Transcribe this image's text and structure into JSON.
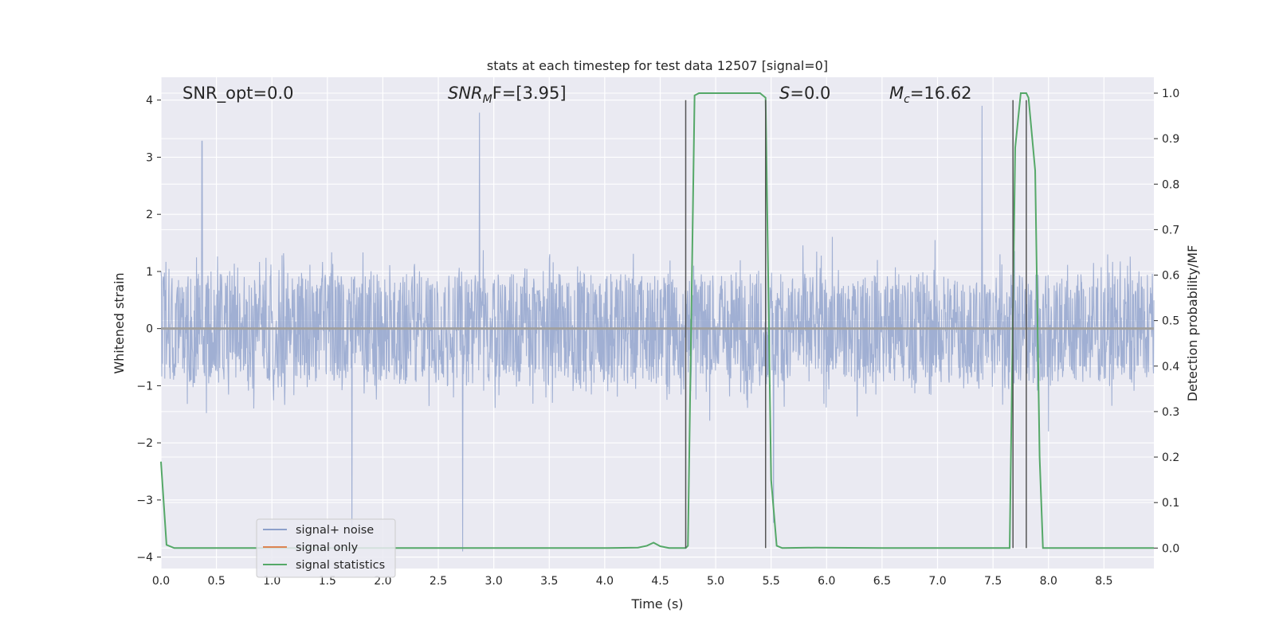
{
  "chart_data": {
    "type": "line",
    "title": "stats at each timestep for test data 12507 [signal=0]",
    "xlabel": "Time (s)",
    "ylabel": "Whitened strain",
    "y2label": "Detection probability/MF",
    "xlim": [
      0.0,
      8.95
    ],
    "ylim": [
      -4.2,
      4.4
    ],
    "y2lim": [
      -0.045,
      1.035
    ],
    "x_ticks": [
      0.0,
      0.5,
      1.0,
      1.5,
      2.0,
      2.5,
      3.0,
      3.5,
      4.0,
      4.5,
      5.0,
      5.5,
      6.0,
      6.5,
      7.0,
      7.5,
      8.0,
      8.5
    ],
    "x_tick_labels": [
      "0.0",
      "0.5",
      "1.0",
      "1.5",
      "2.0",
      "2.5",
      "3.0",
      "3.5",
      "4.0",
      "4.5",
      "5.0",
      "5.5",
      "6.0",
      "6.5",
      "7.0",
      "7.5",
      "8.0",
      "8.5"
    ],
    "y_ticks": [
      4,
      3,
      2,
      1,
      0,
      -1,
      -2,
      -3,
      -4
    ],
    "y_tick_labels": [
      "4",
      "3",
      "2",
      "1",
      "0",
      "−1",
      "−2",
      "−3",
      "−4"
    ],
    "y2_ticks": [
      1.0,
      0.9,
      0.8,
      0.7,
      0.6,
      0.5,
      0.4,
      0.3,
      0.2,
      0.1,
      0.0
    ],
    "y2_tick_labels": [
      "1.0",
      "0.9",
      "0.8",
      "0.7",
      "0.6",
      "0.5",
      "0.4",
      "0.3",
      "0.2",
      "0.1",
      "0.0"
    ],
    "grid": true,
    "legend_position": "lower-left",
    "annotations": {
      "snr_opt": "SNR_opt=0.0",
      "snr_mf_main": "SNR",
      "snr_mf_sub": "M",
      "snr_mf_rest": "F=[3.95]",
      "s_main": "S",
      "s_rest": "=0.0",
      "mc_main": "M",
      "mc_sub": "c",
      "mc_rest": "=16.62"
    },
    "series": [
      {
        "name": "signal+ noise",
        "color": "#8da0cb",
        "description_kind": "noise",
        "typical_abs_max": 1.6,
        "spike_extremes": [
          [
            0.37,
            3.28
          ],
          [
            1.72,
            -3.6
          ],
          [
            2.87,
            3.78
          ],
          [
            2.72,
            -3.9
          ],
          [
            5.52,
            -3.4
          ],
          [
            8.0,
            -1.8
          ],
          [
            7.4,
            3.9
          ]
        ]
      },
      {
        "name": "signal only",
        "color": "#dd8452",
        "x": [
          0.0,
          8.95
        ],
        "y": [
          0.0,
          0.0
        ]
      },
      {
        "name": "signal statistics",
        "color": "#55a868",
        "axis": "right",
        "x": [
          0.0,
          0.05,
          0.12,
          0.3,
          1.0,
          2.0,
          3.0,
          4.0,
          4.3,
          4.38,
          4.44,
          4.5,
          4.58,
          4.62,
          4.7,
          4.73,
          4.75,
          4.81,
          4.85,
          5.0,
          5.2,
          5.4,
          5.45,
          5.5,
          5.55,
          5.6,
          5.9,
          6.5,
          7.0,
          7.6,
          7.65,
          7.7,
          7.75,
          7.8,
          7.82,
          7.88,
          7.92,
          7.95,
          8.3,
          8.95
        ],
        "y": [
          0.19,
          0.007,
          0.0,
          0.0,
          0.0,
          0.0,
          0.0,
          0.0,
          0.001,
          0.005,
          0.012,
          0.004,
          0.0,
          0.0,
          0.0,
          0.0,
          0.005,
          0.995,
          1.0,
          1.0,
          1.0,
          1.0,
          0.99,
          0.15,
          0.005,
          0.0,
          0.001,
          0.0,
          0.0,
          0.0,
          0.0,
          0.88,
          1.0,
          1.0,
          0.99,
          0.83,
          0.2,
          0.0,
          0.0,
          0.0
        ]
      }
    ],
    "vertical_markers": {
      "color": "#555555",
      "x": [
        4.73,
        5.45,
        7.68,
        7.8
      ]
    }
  }
}
